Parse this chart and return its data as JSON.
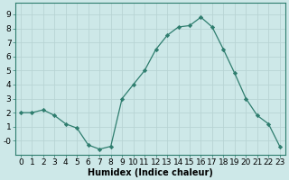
{
  "x": [
    0,
    1,
    2,
    3,
    4,
    5,
    6,
    7,
    8,
    9,
    10,
    11,
    12,
    13,
    14,
    15,
    16,
    17,
    18,
    19,
    20,
    21,
    22,
    23
  ],
  "y": [
    2.0,
    2.0,
    2.2,
    1.8,
    1.2,
    0.9,
    -0.3,
    -0.6,
    -0.4,
    3.0,
    4.0,
    5.0,
    6.5,
    7.5,
    8.1,
    8.2,
    8.8,
    8.1,
    6.5,
    4.8,
    3.0,
    1.8,
    1.2,
    -0.4
  ],
  "line_color": "#2e7d6e",
  "marker": "D",
  "marker_size": 2.2,
  "bg_color": "#cde8e8",
  "grid_color": "#b8d4d4",
  "xlabel": "Humidex (Indice chaleur)",
  "ylim": [
    -1.0,
    9.8
  ],
  "xlim": [
    -0.5,
    23.5
  ],
  "yticks": [
    0,
    1,
    2,
    3,
    4,
    5,
    6,
    7,
    8,
    9
  ],
  "ytick_labels": [
    "-0",
    "1",
    "2",
    "3",
    "4",
    "5",
    "6",
    "7",
    "8",
    "9"
  ],
  "xticks": [
    0,
    1,
    2,
    3,
    4,
    5,
    6,
    7,
    8,
    9,
    10,
    11,
    12,
    13,
    14,
    15,
    16,
    17,
    18,
    19,
    20,
    21,
    22,
    23
  ],
  "xlabel_fontsize": 7,
  "tick_fontsize": 6.5
}
